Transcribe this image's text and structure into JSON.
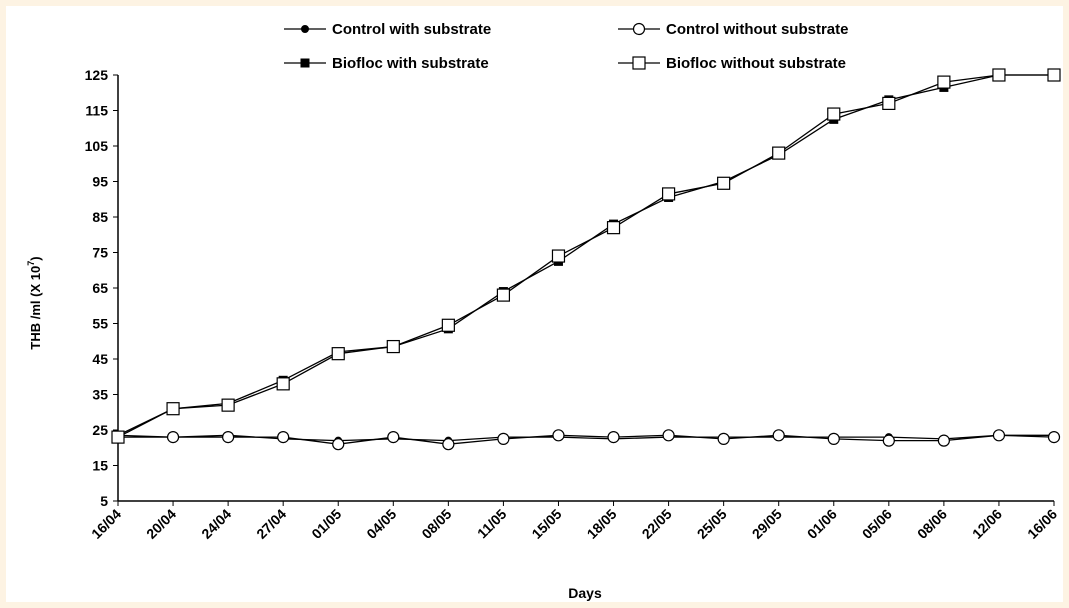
{
  "chart_data": {
    "type": "line",
    "title": "",
    "xlabel": "Days",
    "ylabel": "THB /ml (X 10",
    "ylabel_exponent": "7",
    "ylabel_close": ")",
    "ylim": [
      5,
      125
    ],
    "yticks": [
      5,
      15,
      25,
      35,
      45,
      55,
      65,
      75,
      85,
      95,
      105,
      115,
      125
    ],
    "grid": false,
    "legend_position": "top",
    "categories": [
      "16/04",
      "20/04",
      "24/04",
      "27/04",
      "01/05",
      "04/05",
      "08/05",
      "11/05",
      "15/05",
      "18/05",
      "22/05",
      "25/05",
      "29/05",
      "01/06",
      "05/06",
      "08/06",
      "12/06",
      "16/06"
    ],
    "series": [
      {
        "name": "Control with substrate",
        "marker": "filled-circle",
        "values": [
          23.5,
          23.0,
          23.5,
          22.5,
          22.0,
          22.5,
          22.0,
          23.0,
          23.0,
          22.5,
          23.0,
          23.0,
          23.0,
          23.0,
          23.0,
          22.5,
          23.5,
          23.5
        ]
      },
      {
        "name": "Control without substrate",
        "marker": "open-circle",
        "values": [
          23.0,
          23.0,
          23.0,
          23.0,
          21.0,
          23.0,
          21.0,
          22.5,
          23.5,
          23.0,
          23.5,
          22.5,
          23.5,
          22.5,
          22.0,
          22.0,
          23.5,
          23.0
        ]
      },
      {
        "name": "Biofloc with substrate",
        "marker": "filled-square",
        "values": [
          23.5,
          31.0,
          32.5,
          39.0,
          47.0,
          48.5,
          53.5,
          64.0,
          72.5,
          83.0,
          90.5,
          95.0,
          102.5,
          112.5,
          118.0,
          121.5,
          125.0,
          125.0
        ]
      },
      {
        "name": "Biofloc without substrate",
        "marker": "open-square",
        "values": [
          23.0,
          31.0,
          32.0,
          38.0,
          46.5,
          48.5,
          54.5,
          63.0,
          74.0,
          82.0,
          91.5,
          94.5,
          103.0,
          114.0,
          117.0,
          123.0,
          125.0,
          125.0
        ]
      }
    ]
  }
}
